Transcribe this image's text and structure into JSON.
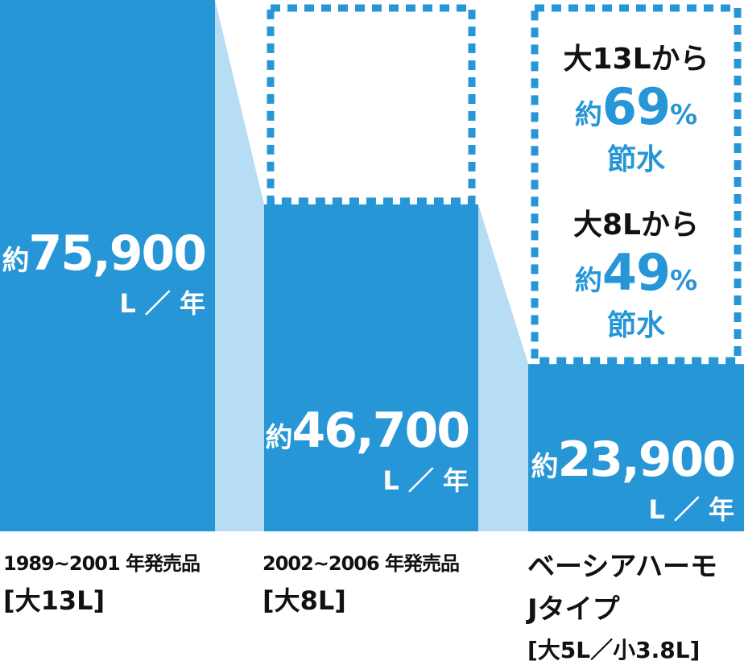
{
  "chart_data": {
    "type": "bar",
    "unit": "L／年",
    "colors": {
      "bar": "#2796d6",
      "connector": "#b7ddf4",
      "outline": "#2796d6"
    },
    "categories": [
      {
        "line1": "1989~2001 年発売品",
        "line2": "[大13L]",
        "line3": ""
      },
      {
        "line1": "2002~2006 年発売品",
        "line2": "[大8L]",
        "line3": ""
      },
      {
        "line1": "ベーシアハーモ",
        "line2": "Jタイプ",
        "line3": "[大5L／小3.8L]"
      }
    ],
    "values": [
      75900,
      46700,
      23900
    ],
    "value_labels": [
      {
        "prefix": "約",
        "number": "75,900",
        "unit": "L ／ 年"
      },
      {
        "prefix": "約",
        "number": "46,700",
        "unit": "L ／ 年"
      },
      {
        "prefix": "約",
        "number": "23,900",
        "unit": "L ／ 年"
      }
    ],
    "savings": [
      {
        "from": "大13Lから",
        "prefix": "約",
        "percent": "69",
        "symbol": "%",
        "word": "節水"
      },
      {
        "from": "大8Lから",
        "prefix": "約",
        "percent": "49",
        "symbol": "%",
        "word": "節水"
      }
    ]
  }
}
